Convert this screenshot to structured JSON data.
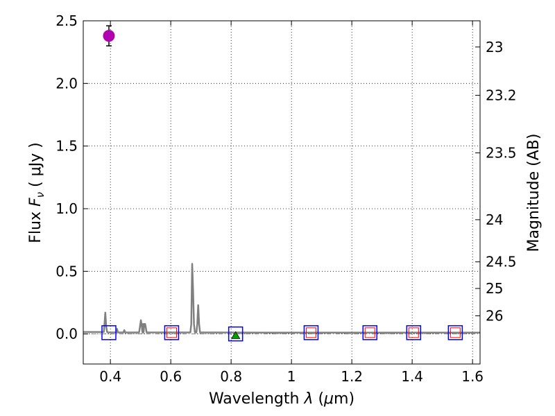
{
  "chart_data": {
    "type": "scatter",
    "title": "",
    "xlabel_prefix": "Wavelength  ",
    "xlabel_symbol": "λ",
    "xlabel_unit_open": " (",
    "xlabel_unit_mu": "μ",
    "xlabel_unit_rest": "m)",
    "ylabel_prefix": "Flux  ",
    "ylabel_symbol": "F",
    "ylabel_sub": "ν",
    "ylabel_unit": "  ( μJy )",
    "y2label": "Magnitude (AB)",
    "xlim": [
      0.31,
      1.625
    ],
    "ylim": [
      -0.24,
      2.5
    ],
    "grid": true,
    "x_ticks": [
      0.4,
      0.6,
      0.8,
      1.0,
      1.2,
      1.4,
      1.6
    ],
    "x_tick_labels": [
      "0.4",
      "0.6",
      "0.8",
      "1",
      "1.2",
      "1.4",
      "1.6"
    ],
    "y_ticks": [
      0.0,
      0.5,
      1.0,
      1.5,
      2.0,
      2.5
    ],
    "y_tick_labels": [
      "0.0",
      "0.5",
      "1.0",
      "1.5",
      "2.0",
      "2.5"
    ],
    "mag_ticks": [
      23,
      23.2,
      23.5,
      24,
      24.5,
      25,
      26
    ],
    "mag_tick_labels": [
      "23",
      "23.2",
      "23.5",
      "24",
      "24.5",
      "25",
      "26"
    ],
    "colors": {
      "spectrum": "#808080",
      "detection": "#b000b0",
      "model_box": "#0000ff",
      "observed_box": "#ff0000",
      "upper_limit": "#00a000",
      "zero_line": "#808080"
    },
    "series": [
      {
        "name": "model spectrum",
        "kind": "line",
        "x": [
          0.31,
          0.378,
          0.38,
          0.383,
          0.386,
          0.389,
          0.392,
          0.42,
          0.422,
          0.425,
          0.443,
          0.446,
          0.449,
          0.495,
          0.498,
          0.501,
          0.504,
          0.506,
          0.508,
          0.51,
          0.512,
          0.515,
          0.518,
          0.52,
          0.665,
          0.668,
          0.671,
          0.674,
          0.677,
          0.68,
          0.685,
          0.688,
          0.691,
          0.694,
          0.697,
          0.73,
          1.0,
          1.3,
          1.625
        ],
        "y": [
          0.015,
          0.015,
          0.06,
          0.17,
          0.06,
          0.015,
          0.012,
          0.012,
          0.04,
          0.012,
          0.012,
          0.03,
          0.012,
          0.012,
          0.06,
          0.11,
          0.06,
          0.012,
          0.08,
          0.012,
          0.08,
          0.08,
          0.04,
          0.012,
          0.012,
          0.08,
          0.56,
          0.35,
          0.08,
          0.012,
          0.012,
          0.08,
          0.23,
          0.08,
          0.012,
          0.012,
          0.01,
          0.01,
          0.01
        ]
      },
      {
        "name": "detection",
        "kind": "point",
        "x": [
          0.395
        ],
        "y": [
          2.38
        ],
        "yerr": [
          0.08
        ]
      },
      {
        "name": "model photometry",
        "kind": "box",
        "x": [
          0.395,
          0.603,
          0.815,
          1.065,
          1.26,
          1.405,
          1.543
        ],
        "y": [
          0.01,
          0.01,
          0.0,
          0.01,
          0.01,
          0.01,
          0.01
        ]
      },
      {
        "name": "observed photometry",
        "kind": "box",
        "x": [
          0.603,
          1.065,
          1.26,
          1.405,
          1.543
        ],
        "y": [
          0.01,
          0.01,
          0.01,
          0.01,
          0.01
        ]
      },
      {
        "name": "upper limit",
        "kind": "triangle",
        "x": [
          0.815
        ],
        "y": [
          -0.015
        ]
      }
    ]
  }
}
